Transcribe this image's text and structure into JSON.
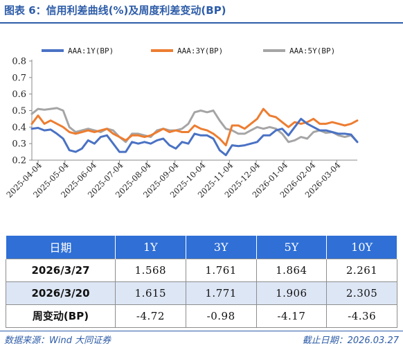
{
  "figure": {
    "title": "图表 6：信用利差曲线(%)及周度利差变动(BP)",
    "source": "数据来源：Wind 大同证券",
    "cutoff_date": "截止日期：2026.03.27"
  },
  "chart_data": {
    "type": "line",
    "title": "",
    "xlabel": "",
    "ylabel": "",
    "ylim": [
      0.2,
      0.8
    ],
    "yticks": [
      "0.2",
      "0.3",
      "0.4",
      "0.5",
      "0.6",
      "0.7",
      "0.8"
    ],
    "x_range": [
      "2025-03-28",
      "2026-03-27"
    ],
    "xtick_labels": [
      "2025-04-04",
      "2025-05-04",
      "2025-06-04",
      "2025-07-04",
      "2025-08-04",
      "2025-09-04",
      "2025-10-04",
      "2025-11-04",
      "2025-12-04",
      "2026-01-04",
      "2026-02-04",
      "2026-03-04"
    ],
    "legend": "top",
    "grid": false,
    "series": [
      {
        "name": "AAA:1Y(BP)",
        "color": "#4a72c4",
        "points": [
          [
            "2025-03-28",
            0.39
          ],
          [
            "2025-04-04",
            0.395
          ],
          [
            "2025-04-11",
            0.38
          ],
          [
            "2025-04-18",
            0.385
          ],
          [
            "2025-04-25",
            0.36
          ],
          [
            "2025-05-02",
            0.33
          ],
          [
            "2025-05-09",
            0.26
          ],
          [
            "2025-05-16",
            0.25
          ],
          [
            "2025-05-23",
            0.27
          ],
          [
            "2025-05-30",
            0.32
          ],
          [
            "2025-06-06",
            0.3
          ],
          [
            "2025-06-13",
            0.34
          ],
          [
            "2025-06-20",
            0.35
          ],
          [
            "2025-06-27",
            0.3
          ],
          [
            "2025-07-04",
            0.25
          ],
          [
            "2025-07-11",
            0.25
          ],
          [
            "2025-07-18",
            0.31
          ],
          [
            "2025-07-25",
            0.3
          ],
          [
            "2025-08-01",
            0.31
          ],
          [
            "2025-08-08",
            0.3
          ],
          [
            "2025-08-15",
            0.32
          ],
          [
            "2025-08-22",
            0.33
          ],
          [
            "2025-08-29",
            0.29
          ],
          [
            "2025-09-05",
            0.27
          ],
          [
            "2025-09-12",
            0.31
          ],
          [
            "2025-09-19",
            0.3
          ],
          [
            "2025-09-26",
            0.36
          ],
          [
            "2025-10-03",
            0.35
          ],
          [
            "2025-10-10",
            0.35
          ],
          [
            "2025-10-17",
            0.33
          ],
          [
            "2025-10-24",
            0.26
          ],
          [
            "2025-10-31",
            0.23
          ],
          [
            "2025-11-07",
            0.29
          ],
          [
            "2025-11-14",
            0.285
          ],
          [
            "2025-11-21",
            0.29
          ],
          [
            "2025-11-28",
            0.3
          ],
          [
            "2025-12-05",
            0.31
          ],
          [
            "2025-12-12",
            0.35
          ],
          [
            "2025-12-19",
            0.35
          ],
          [
            "2025-12-26",
            0.38
          ],
          [
            "2026-01-02",
            0.39
          ],
          [
            "2026-01-09",
            0.35
          ],
          [
            "2026-01-16",
            0.4
          ],
          [
            "2026-01-23",
            0.45
          ],
          [
            "2026-01-30",
            0.42
          ],
          [
            "2026-02-06",
            0.4
          ],
          [
            "2026-02-13",
            0.38
          ],
          [
            "2026-02-20",
            0.38
          ],
          [
            "2026-02-27",
            0.37
          ],
          [
            "2026-03-06",
            0.36
          ],
          [
            "2026-03-13",
            0.36
          ],
          [
            "2026-03-20",
            0.355
          ],
          [
            "2026-03-27",
            0.31
          ]
        ]
      },
      {
        "name": "AAA:3Y(BP)",
        "color": "#ed7d31",
        "points": [
          [
            "2025-03-28",
            0.42
          ],
          [
            "2025-04-04",
            0.47
          ],
          [
            "2025-04-11",
            0.42
          ],
          [
            "2025-04-18",
            0.44
          ],
          [
            "2025-04-25",
            0.42
          ],
          [
            "2025-05-02",
            0.4
          ],
          [
            "2025-05-09",
            0.37
          ],
          [
            "2025-05-16",
            0.36
          ],
          [
            "2025-05-23",
            0.37
          ],
          [
            "2025-05-30",
            0.38
          ],
          [
            "2025-06-06",
            0.37
          ],
          [
            "2025-06-13",
            0.38
          ],
          [
            "2025-06-20",
            0.39
          ],
          [
            "2025-06-27",
            0.36
          ],
          [
            "2025-07-04",
            0.34
          ],
          [
            "2025-07-11",
            0.32
          ],
          [
            "2025-07-18",
            0.35
          ],
          [
            "2025-07-25",
            0.35
          ],
          [
            "2025-08-01",
            0.34
          ],
          [
            "2025-08-08",
            0.35
          ],
          [
            "2025-08-15",
            0.37
          ],
          [
            "2025-08-22",
            0.39
          ],
          [
            "2025-08-29",
            0.37
          ],
          [
            "2025-09-05",
            0.38
          ],
          [
            "2025-09-12",
            0.37
          ],
          [
            "2025-09-19",
            0.37
          ],
          [
            "2025-09-26",
            0.41
          ],
          [
            "2025-10-03",
            0.39
          ],
          [
            "2025-10-10",
            0.38
          ],
          [
            "2025-10-17",
            0.36
          ],
          [
            "2025-10-24",
            0.33
          ],
          [
            "2025-10-31",
            0.29
          ],
          [
            "2025-11-07",
            0.41
          ],
          [
            "2025-11-14",
            0.41
          ],
          [
            "2025-11-21",
            0.39
          ],
          [
            "2025-11-28",
            0.42
          ],
          [
            "2025-12-05",
            0.45
          ],
          [
            "2025-12-12",
            0.51
          ],
          [
            "2025-12-19",
            0.47
          ],
          [
            "2025-12-26",
            0.46
          ],
          [
            "2026-01-02",
            0.43
          ],
          [
            "2026-01-09",
            0.4
          ],
          [
            "2026-01-16",
            0.43
          ],
          [
            "2026-01-23",
            0.42
          ],
          [
            "2026-01-30",
            0.43
          ],
          [
            "2026-02-06",
            0.45
          ],
          [
            "2026-02-13",
            0.42
          ],
          [
            "2026-02-20",
            0.42
          ],
          [
            "2026-02-27",
            0.43
          ],
          [
            "2026-03-06",
            0.42
          ],
          [
            "2026-03-13",
            0.41
          ],
          [
            "2026-03-20",
            0.42
          ],
          [
            "2026-03-27",
            0.44
          ]
        ]
      },
      {
        "name": "AAA:5Y(BP)",
        "color": "#a5a5a5",
        "points": [
          [
            "2025-03-28",
            0.48
          ],
          [
            "2025-04-04",
            0.51
          ],
          [
            "2025-04-11",
            0.505
          ],
          [
            "2025-04-18",
            0.51
          ],
          [
            "2025-04-25",
            0.515
          ],
          [
            "2025-05-02",
            0.5
          ],
          [
            "2025-05-09",
            0.4
          ],
          [
            "2025-05-16",
            0.37
          ],
          [
            "2025-05-23",
            0.38
          ],
          [
            "2025-05-30",
            0.39
          ],
          [
            "2025-06-06",
            0.38
          ],
          [
            "2025-06-13",
            0.37
          ],
          [
            "2025-06-20",
            0.39
          ],
          [
            "2025-06-27",
            0.38
          ],
          [
            "2025-07-04",
            0.34
          ],
          [
            "2025-07-11",
            0.31
          ],
          [
            "2025-07-18",
            0.36
          ],
          [
            "2025-07-25",
            0.36
          ],
          [
            "2025-08-01",
            0.35
          ],
          [
            "2025-08-08",
            0.34
          ],
          [
            "2025-08-15",
            0.38
          ],
          [
            "2025-08-22",
            0.39
          ],
          [
            "2025-08-29",
            0.38
          ],
          [
            "2025-09-05",
            0.38
          ],
          [
            "2025-09-12",
            0.39
          ],
          [
            "2025-09-19",
            0.42
          ],
          [
            "2025-09-26",
            0.49
          ],
          [
            "2025-10-03",
            0.5
          ],
          [
            "2025-10-10",
            0.49
          ],
          [
            "2025-10-17",
            0.5
          ],
          [
            "2025-10-24",
            0.44
          ],
          [
            "2025-10-31",
            0.39
          ],
          [
            "2025-11-07",
            0.38
          ],
          [
            "2025-11-14",
            0.36
          ],
          [
            "2025-11-21",
            0.36
          ],
          [
            "2025-11-28",
            0.38
          ],
          [
            "2025-12-05",
            0.4
          ],
          [
            "2025-12-12",
            0.39
          ],
          [
            "2025-12-19",
            0.4
          ],
          [
            "2025-12-26",
            0.39
          ],
          [
            "2026-01-02",
            0.36
          ],
          [
            "2026-01-09",
            0.31
          ],
          [
            "2026-01-16",
            0.32
          ],
          [
            "2026-01-23",
            0.34
          ],
          [
            "2026-01-30",
            0.33
          ],
          [
            "2026-02-06",
            0.37
          ],
          [
            "2026-02-13",
            0.38
          ],
          [
            "2026-02-20",
            0.365
          ],
          [
            "2026-02-27",
            0.37
          ],
          [
            "2026-03-06",
            0.35
          ],
          [
            "2026-03-13",
            0.34
          ],
          [
            "2026-03-20",
            0.35
          ],
          [
            "2026-03-27",
            0.31
          ]
        ]
      }
    ]
  },
  "table": {
    "headers": [
      "日期",
      "1Y",
      "3Y",
      "5Y",
      "10Y"
    ],
    "rows": [
      {
        "label": "2026/3/27",
        "values": [
          "1.568",
          "1.761",
          "1.864",
          "2.261"
        ]
      },
      {
        "label": "2026/3/20",
        "values": [
          "1.615",
          "1.771",
          "1.906",
          "2.305"
        ]
      },
      {
        "label": "周变动(BP)",
        "values": [
          "-4.72",
          "-0.98",
          "-4.17",
          "-4.36"
        ]
      }
    ]
  }
}
